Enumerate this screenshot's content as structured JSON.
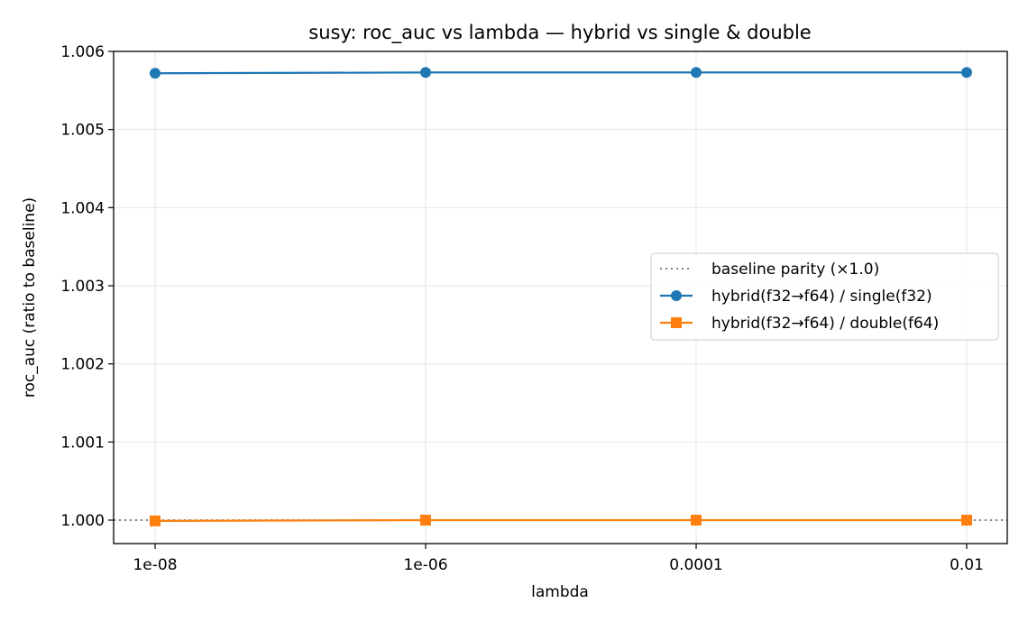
{
  "chart_data": {
    "type": "line",
    "title": "susy: roc_auc vs lambda — hybrid vs single & double",
    "xlabel": "lambda",
    "ylabel": "roc_auc (ratio to baseline)",
    "categories": [
      "1e-08",
      "1e-06",
      "0.0001",
      "0.01"
    ],
    "ylim": [
      0.9997,
      1.006
    ],
    "yticks": [
      1.0,
      1.001,
      1.002,
      1.003,
      1.004,
      1.005,
      1.006
    ],
    "ytick_labels": [
      "1.000",
      "1.001",
      "1.002",
      "1.003",
      "1.004",
      "1.005",
      "1.006"
    ],
    "grid": true,
    "legend_position": "center-right",
    "baseline": {
      "name": "baseline parity (×1.0)",
      "value": 1.0,
      "color": "#808080",
      "style": "dotted"
    },
    "series": [
      {
        "name": "hybrid(f32→f64) / single(f32)",
        "marker": "circle",
        "color": "#1f77b4",
        "values": [
          1.00572,
          1.00573,
          1.00573,
          1.00573
        ]
      },
      {
        "name": "hybrid(f32→f64) / double(f64)",
        "marker": "square",
        "color": "#ff7f0e",
        "values": [
          0.99999,
          1.0,
          1.0,
          1.0
        ]
      }
    ]
  }
}
